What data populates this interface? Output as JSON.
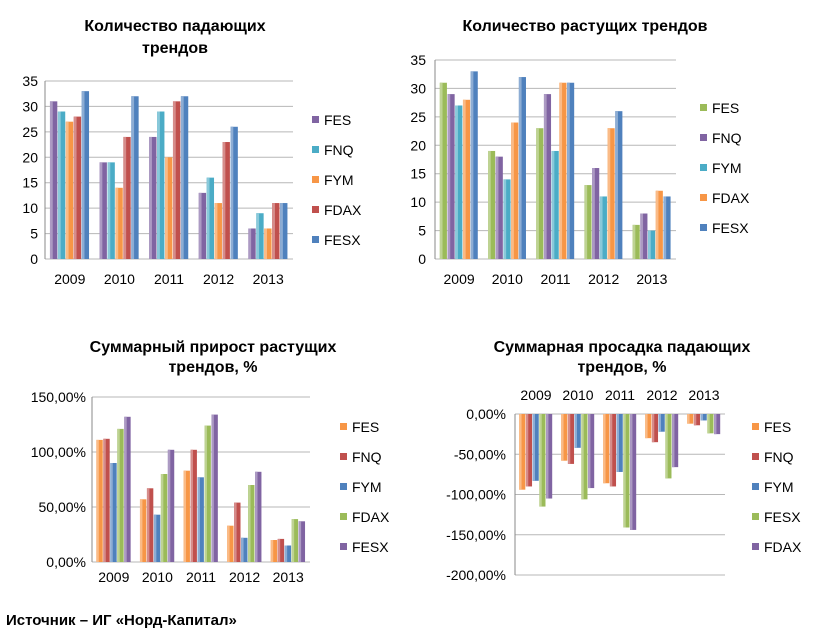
{
  "source_text": "Источник – ИГ «Норд-Капитал»",
  "colors": {
    "FES": "#8bb05a",
    "FNQ": "#8064a2",
    "FYM": "#4bacc6",
    "FDAX": "#f79646",
    "FESX": "#4f81bd"
  },
  "chart_data": [
    {
      "type": "bar",
      "title": [
        "Количество падающих",
        "трендов"
      ],
      "categories": [
        "2009",
        "2010",
        "2011",
        "2012",
        "2013"
      ],
      "ylim": [
        0,
        35
      ],
      "yticks": [
        "0",
        "5",
        "10",
        "15",
        "20",
        "25",
        "30",
        "35"
      ],
      "grid": true,
      "legend_position": "right",
      "series": [
        {
          "name": "FES",
          "color": "#8064a2",
          "values": [
            31,
            19,
            24,
            13,
            6
          ]
        },
        {
          "name": "FNQ",
          "color": "#4bacc6",
          "values": [
            29,
            19,
            29,
            16,
            9
          ]
        },
        {
          "name": "FYM",
          "color": "#f79646",
          "values": [
            27,
            14,
            20,
            11,
            6
          ]
        },
        {
          "name": "FDAX",
          "color": "#c0504d",
          "values": [
            28,
            24,
            31,
            23,
            11
          ]
        },
        {
          "name": "FESX",
          "color": "#4f81bd",
          "values": [
            33,
            32,
            32,
            26,
            11
          ]
        }
      ]
    },
    {
      "type": "bar",
      "title": [
        "Количество растущих трендов"
      ],
      "categories": [
        "2009",
        "2010",
        "2011",
        "2012",
        "2013"
      ],
      "ylim": [
        0,
        35
      ],
      "yticks": [
        "0",
        "5",
        "10",
        "15",
        "20",
        "25",
        "30",
        "35"
      ],
      "grid": true,
      "legend_position": "right",
      "series": [
        {
          "name": "FES",
          "color": "#9bbb59",
          "values": [
            31,
            19,
            23,
            13,
            6
          ]
        },
        {
          "name": "FNQ",
          "color": "#8064a2",
          "values": [
            29,
            18,
            29,
            16,
            8
          ]
        },
        {
          "name": "FYM",
          "color": "#4bacc6",
          "values": [
            27,
            14,
            19,
            11,
            5
          ]
        },
        {
          "name": "FDAX",
          "color": "#f79646",
          "values": [
            28,
            24,
            31,
            23,
            12
          ]
        },
        {
          "name": "FESX",
          "color": "#4f81bd",
          "values": [
            33,
            32,
            31,
            26,
            11
          ]
        }
      ]
    },
    {
      "type": "bar",
      "title": [
        "Суммарный прирост растущих",
        "трендов, %"
      ],
      "categories": [
        "2009",
        "2010",
        "2011",
        "2012",
        "2013"
      ],
      "ylim": [
        0,
        150
      ],
      "yticks": [
        "0,00%",
        "50,00%",
        "100,00%",
        "150,00%"
      ],
      "grid": true,
      "legend_position": "right",
      "series": [
        {
          "name": "FES",
          "color": "#f79646",
          "values": [
            111,
            57,
            83,
            33,
            20
          ]
        },
        {
          "name": "FNQ",
          "color": "#c0504d",
          "values": [
            112,
            67,
            102,
            54,
            21
          ]
        },
        {
          "name": "FYM",
          "color": "#4f81bd",
          "values": [
            90,
            43,
            77,
            22,
            15
          ]
        },
        {
          "name": "FDAX",
          "color": "#9bbb59",
          "values": [
            121,
            80,
            124,
            70,
            39
          ]
        },
        {
          "name": "FESX",
          "color": "#8064a2",
          "values": [
            132,
            102,
            134,
            82,
            37
          ]
        }
      ]
    },
    {
      "type": "bar",
      "title": [
        "Суммарная просадка падающих",
        "трендов, %"
      ],
      "categories": [
        "2009",
        "2010",
        "2011",
        "2012",
        "2013"
      ],
      "ylim": [
        -200,
        0
      ],
      "yticks": [
        "-200,00%",
        "-150,00%",
        "-100,00%",
        "-50,00%",
        "0,00%"
      ],
      "grid": true,
      "category_labels_position": "top",
      "legend_position": "right",
      "series": [
        {
          "name": "FES",
          "color": "#f79646",
          "values": [
            -94,
            -58,
            -86,
            -30,
            -12
          ]
        },
        {
          "name": "FNQ",
          "color": "#c0504d",
          "values": [
            -90,
            -62,
            -90,
            -35,
            -14
          ]
        },
        {
          "name": "FYM",
          "color": "#4f81bd",
          "values": [
            -83,
            -42,
            -72,
            -22,
            -8
          ]
        },
        {
          "name": "FESX",
          "color": "#9bbb59",
          "values": [
            -115,
            -106,
            -141,
            -80,
            -24
          ]
        },
        {
          "name": "FDAX",
          "color": "#8064a2",
          "values": [
            -105,
            -92,
            -144,
            -66,
            -25
          ]
        }
      ]
    }
  ]
}
